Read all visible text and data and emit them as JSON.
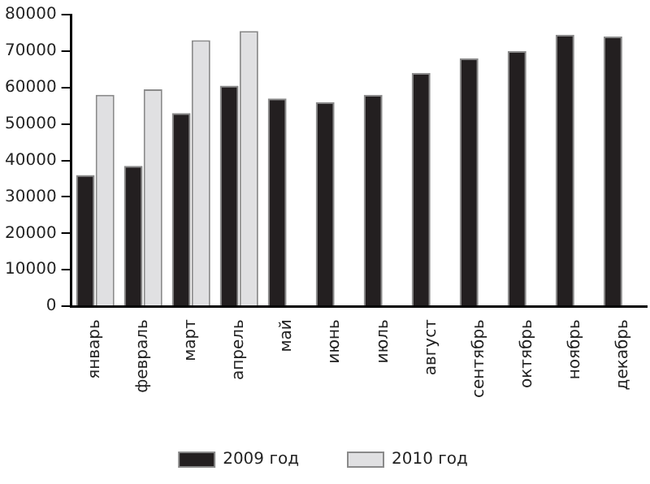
{
  "chart_data": {
    "type": "bar",
    "categories": [
      "январь",
      "февраль",
      "март",
      "апрель",
      "май",
      "июнь",
      "июль",
      "август",
      "сентябрь",
      "октябрь",
      "ноябрь",
      "декабрь"
    ],
    "series": [
      {
        "name": "2009 год",
        "color": "#231f20",
        "values": [
          36000,
          38500,
          53000,
          60500,
          57000,
          56000,
          58000,
          64000,
          68000,
          70000,
          74500,
          74000
        ]
      },
      {
        "name": "2010 год",
        "color": "#e0e0e2",
        "values": [
          58000,
          59500,
          73000,
          75500,
          null,
          null,
          null,
          null,
          null,
          null,
          null,
          null
        ]
      }
    ],
    "ylim": [
      0,
      80000
    ],
    "yticks": [
      0,
      10000,
      20000,
      30000,
      40000,
      50000,
      60000,
      70000,
      80000
    ],
    "grid": false,
    "legend": "bottom"
  }
}
